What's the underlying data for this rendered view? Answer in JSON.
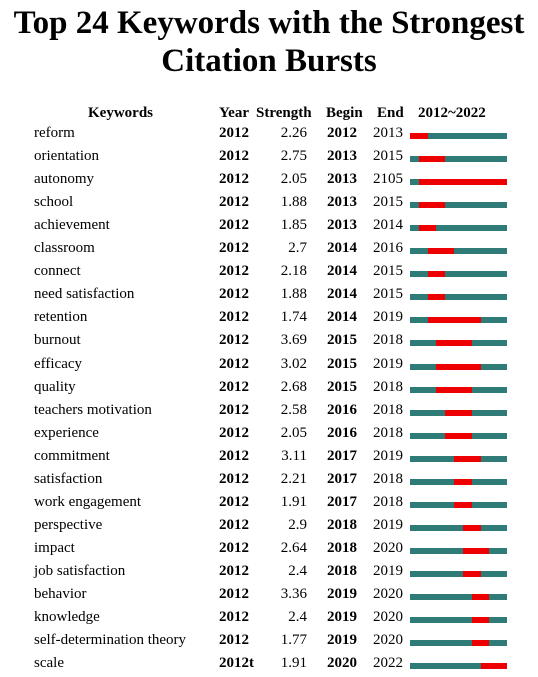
{
  "title": {
    "line1": "Top 24 Keywords with the Strongest",
    "line2": "Citation Bursts"
  },
  "headers": {
    "keywords": "Keywords",
    "year": "Year",
    "strength": "Strength",
    "begin": "Begin",
    "end": "End",
    "range": "2012~2022"
  },
  "colors": {
    "timeline": "#2e7b78",
    "burst": "#ee0000"
  },
  "chart_data": {
    "type": "table",
    "timeline_start": 2012,
    "timeline_end": 2022,
    "columns": [
      "Keywords",
      "Year",
      "Strength",
      "Begin",
      "End",
      "2012~2022"
    ],
    "rows": [
      {
        "keyword": "reform",
        "year": "2012",
        "strength": "2.26",
        "begin": "2012",
        "end": "2013"
      },
      {
        "keyword": "orientation",
        "year": "2012",
        "strength": "2.75",
        "begin": "2013",
        "end": "2015"
      },
      {
        "keyword": "autonomy",
        "year": "2012",
        "strength": "2.05",
        "begin": "2013",
        "end": "2105"
      },
      {
        "keyword": "school",
        "year": "2012",
        "strength": "1.88",
        "begin": "2013",
        "end": "2015"
      },
      {
        "keyword": "achievement",
        "year": "2012",
        "strength": "1.85",
        "begin": "2013",
        "end": "2014"
      },
      {
        "keyword": "classroom",
        "year": "2012",
        "strength": "2.7",
        "begin": "2014",
        "end": "2016"
      },
      {
        "keyword": "connect",
        "year": "2012",
        "strength": "2.18",
        "begin": "2014",
        "end": "2015"
      },
      {
        "keyword": "need satisfaction",
        "year": "2012",
        "strength": "1.88",
        "begin": "2014",
        "end": "2015"
      },
      {
        "keyword": "retention",
        "year": "2012",
        "strength": "1.74",
        "begin": "2014",
        "end": "2019"
      },
      {
        "keyword": "burnout",
        "year": "2012",
        "strength": "3.69",
        "begin": "2015",
        "end": "2018"
      },
      {
        "keyword": "efficacy",
        "year": "2012",
        "strength": "3.02",
        "begin": "2015",
        "end": "2019"
      },
      {
        "keyword": "quality",
        "year": "2012",
        "strength": "2.68",
        "begin": "2015",
        "end": "2018"
      },
      {
        "keyword": "teachers motivation",
        "year": "2012",
        "strength": "2.58",
        "begin": "2016",
        "end": "2018"
      },
      {
        "keyword": "experience",
        "year": "2012",
        "strength": "2.05",
        "begin": "2016",
        "end": "2018"
      },
      {
        "keyword": "commitment",
        "year": "2012",
        "strength": "3.11",
        "begin": "2017",
        "end": "2019"
      },
      {
        "keyword": "satisfaction",
        "year": "2012",
        "strength": "2.21",
        "begin": "2017",
        "end": "2018"
      },
      {
        "keyword": "work engagement",
        "year": "2012",
        "strength": "1.91",
        "begin": "2017",
        "end": "2018"
      },
      {
        "keyword": "perspective",
        "year": "2012",
        "strength": "2.9",
        "begin": "2018",
        "end": "2019"
      },
      {
        "keyword": "impact",
        "year": "2012",
        "strength": "2.64",
        "begin": "2018",
        "end": "2020"
      },
      {
        "keyword": "job satisfaction",
        "year": "2012",
        "strength": "2.4",
        "begin": "2018",
        "end": "2019"
      },
      {
        "keyword": "behavior",
        "year": "2012",
        "strength": "3.36",
        "begin": "2019",
        "end": "2020"
      },
      {
        "keyword": "knowledge",
        "year": "2012",
        "strength": "2.4",
        "begin": "2019",
        "end": "2020"
      },
      {
        "keyword": "self-determination theory",
        "year": "2012",
        "strength": "1.77",
        "begin": "2019",
        "end": "2020"
      },
      {
        "keyword": "scale",
        "year": "2012t",
        "strength": "1.91",
        "begin": "2020",
        "end": "2022"
      }
    ]
  }
}
